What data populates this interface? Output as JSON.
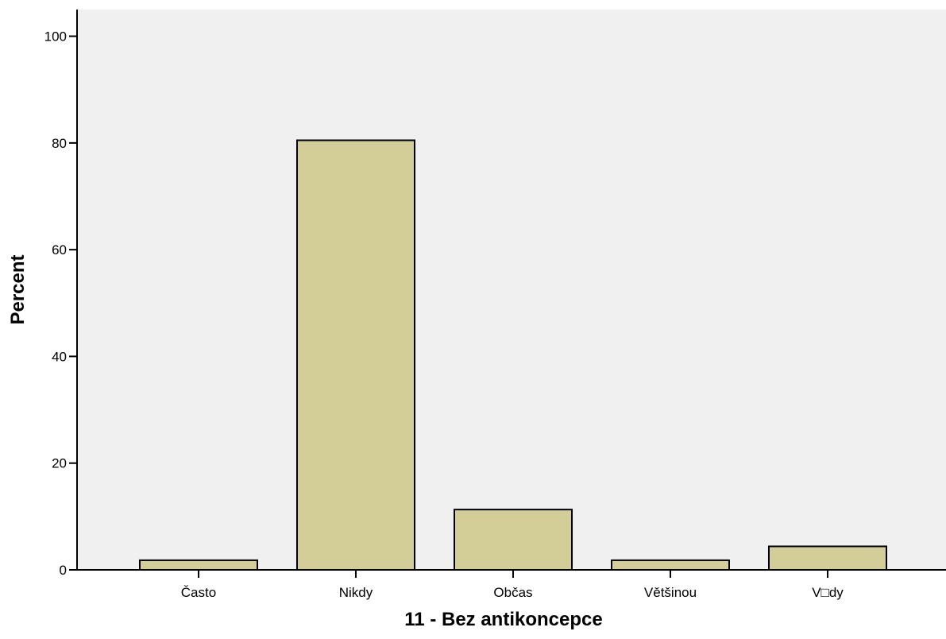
{
  "chart_data": {
    "type": "bar",
    "title": "",
    "xlabel": "11 - Bez antikoncepce",
    "ylabel": "Percent",
    "categories": [
      "Často",
      "Nikdy",
      "Občas",
      "Většinou",
      "V□dy"
    ],
    "values": [
      1.8,
      80.5,
      11.3,
      1.8,
      4.4
    ],
    "ylim": [
      0,
      100
    ],
    "yticks": [
      0,
      20,
      40,
      60,
      80,
      100
    ],
    "ytick_labels": [
      "0",
      "20",
      "40",
      "60",
      "80",
      "100"
    ],
    "grid": false,
    "legend": "none",
    "colors": {
      "plot_background": "#f0f0f0",
      "bar_fill": "#d3ce97",
      "bar_stroke": "#000000",
      "axis": "#000000"
    }
  }
}
